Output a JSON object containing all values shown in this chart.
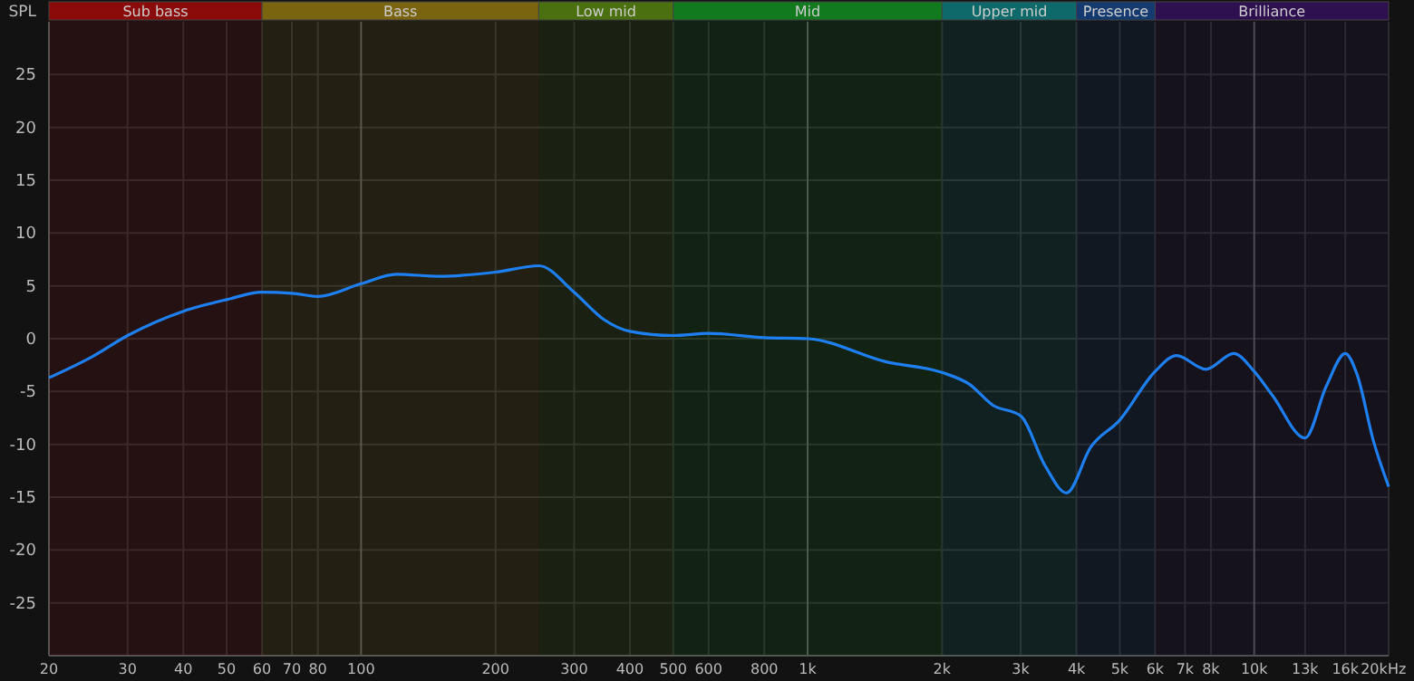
{
  "chart_data": {
    "type": "line",
    "ylabel": "SPL",
    "log": "x",
    "grid": true,
    "line_style": "solid",
    "marker": "none",
    "xlim": [
      20,
      20000
    ],
    "ylim": [
      -30,
      30
    ],
    "xticks": [
      20,
      30,
      40,
      50,
      60,
      70,
      80,
      100,
      200,
      300,
      400,
      500,
      600,
      800,
      {
        "value": 1000,
        "label": "1k"
      },
      {
        "value": 2000,
        "label": "2k"
      },
      {
        "value": 3000,
        "label": "3k"
      },
      {
        "value": 4000,
        "label": "4k"
      },
      {
        "value": 5000,
        "label": "5k"
      },
      {
        "value": 6000,
        "label": "6k"
      },
      {
        "value": 7000,
        "label": "7k"
      },
      {
        "value": 8000,
        "label": "8k"
      },
      {
        "value": 10000,
        "label": "10k"
      },
      {
        "value": 13000,
        "label": "13k"
      },
      {
        "value": 16000,
        "label": "16k"
      },
      {
        "value": 20000,
        "label": "20k"
      }
    ],
    "xlabel": "Hz",
    "yticks": [
      -25,
      -20,
      -15,
      -10,
      -5,
      0,
      5,
      10,
      15,
      20,
      25
    ],
    "bands": [
      {
        "axis": "x",
        "from": 20,
        "to": 60,
        "label": "Sub bass",
        "color": "#8b0a0a"
      },
      {
        "axis": "x",
        "from": 60,
        "to": 250,
        "label": "Bass",
        "color": "#7a6410"
      },
      {
        "axis": "x",
        "from": 250,
        "to": 500,
        "label": "Low mid",
        "color": "#4a7010"
      },
      {
        "axis": "x",
        "from": 500,
        "to": 2000,
        "label": "Mid",
        "color": "#127a1e"
      },
      {
        "axis": "x",
        "from": 2000,
        "to": 4000,
        "label": "Upper mid",
        "color": "#0e6a6a"
      },
      {
        "axis": "x",
        "from": 4000,
        "to": 6000,
        "label": "Presence",
        "color": "#143a70"
      },
      {
        "axis": "x",
        "from": 6000,
        "to": 20000,
        "label": "Brilliance",
        "color": "#2e1050"
      }
    ],
    "series": [
      {
        "color": "#1e7ff0",
        "x": [
          20,
          25,
          30,
          40,
          50,
          60,
          70,
          80,
          100,
          120,
          150,
          200,
          250,
          300,
          350,
          400,
          500,
          600,
          800,
          1000,
          1500,
          2000,
          2300,
          2600,
          3000,
          3400,
          3800,
          4300,
          5000,
          6000,
          6700,
          7800,
          9000,
          10000,
          11000,
          13000,
          14500,
          16000,
          17000,
          18500,
          20000
        ],
        "values": [
          -3.7,
          -1.7,
          0.3,
          2.6,
          3.7,
          4.4,
          4.3,
          4.0,
          5.2,
          6.1,
          5.9,
          6.3,
          6.9,
          4.4,
          1.8,
          0.7,
          0.3,
          0.5,
          0.1,
          0,
          -2.2,
          -3.2,
          -4.3,
          -6.3,
          -7.3,
          -12.0,
          -14.6,
          -10.3,
          -7.7,
          -3.1,
          -1.6,
          -2.9,
          -1.4,
          -3.1,
          -5.4,
          -9.4,
          -4.5,
          -1.4,
          -3.4,
          -9.7,
          -14.0
        ]
      }
    ]
  }
}
